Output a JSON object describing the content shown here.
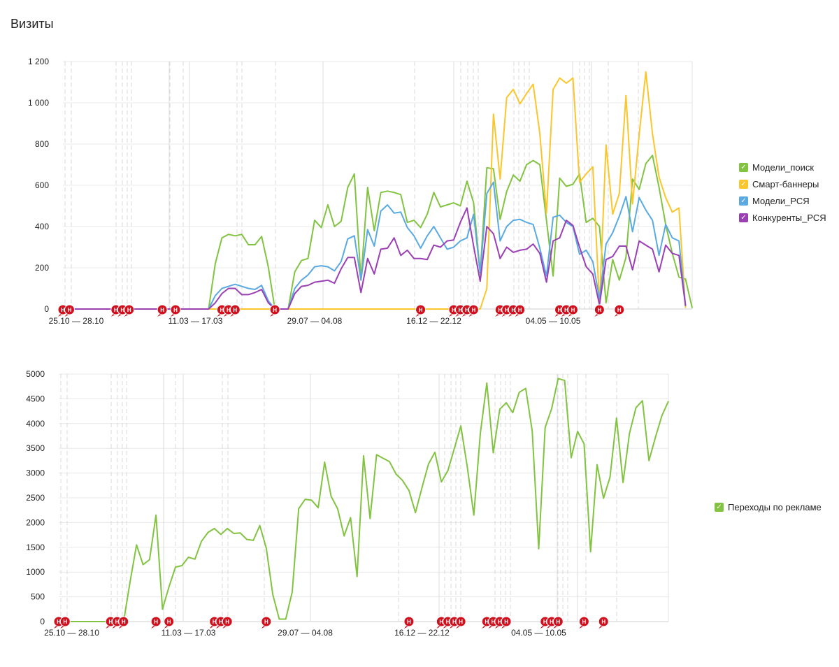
{
  "page_title": "Визиты",
  "annotation_marker_label": "Н",
  "legend_check": "✓",
  "chart_data": [
    {
      "type": "line",
      "ylim": [
        0,
        1200
      ],
      "yticks": [
        0,
        200,
        400,
        600,
        800,
        1000,
        1200
      ],
      "ytick_labels": [
        "0",
        "200",
        "400",
        "600",
        "800",
        "1 000",
        "1 200"
      ],
      "x_labels": [
        {
          "i": 2,
          "label": "25.10 — 28.10"
        },
        {
          "i": 20,
          "label": "11.03 — 17.03"
        },
        {
          "i": 38,
          "label": "29.07 — 04.08"
        },
        {
          "i": 56,
          "label": "16.12 — 22.12"
        },
        {
          "i": 74,
          "label": "04.05 — 10.05"
        }
      ],
      "grid": true,
      "legend_placement": "right",
      "series": [
        {
          "name": "Модели_поиск",
          "color": "#82c341",
          "values": [
            0,
            0,
            0,
            0,
            0,
            0,
            0,
            0,
            0,
            0,
            0,
            0,
            0,
            0,
            0,
            0,
            0,
            0,
            0,
            0,
            0,
            0,
            0,
            220,
            345,
            362,
            355,
            362,
            312,
            312,
            352,
            205,
            0,
            0,
            0,
            180,
            235,
            245,
            430,
            395,
            505,
            400,
            425,
            590,
            655,
            140,
            590,
            380,
            565,
            572,
            565,
            555,
            420,
            430,
            395,
            460,
            565,
            495,
            505,
            515,
            500,
            620,
            515,
            175,
            685,
            680,
            435,
            570,
            650,
            620,
            700,
            720,
            700,
            430,
            160,
            635,
            595,
            605,
            655,
            420,
            440,
            400,
            30,
            240,
            140,
            250,
            630,
            580,
            705,
            745,
            590,
            410,
            270,
            155,
            145,
            5
          ]
        },
        {
          "name": "Смарт-баннеры",
          "color": "#fbc52c",
          "values": [
            0,
            0,
            0,
            0,
            0,
            0,
            0,
            0,
            0,
            0,
            0,
            0,
            0,
            0,
            0,
            0,
            0,
            0,
            0,
            0,
            0,
            0,
            0,
            0,
            0,
            0,
            0,
            0,
            0,
            0,
            0,
            0,
            0,
            0,
            0,
            0,
            0,
            0,
            0,
            0,
            0,
            0,
            0,
            0,
            0,
            0,
            0,
            0,
            0,
            0,
            0,
            0,
            0,
            0,
            0,
            0,
            0,
            0,
            0,
            0,
            0,
            0,
            0,
            0,
            100,
            945,
            630,
            1025,
            1065,
            995,
            1045,
            1090,
            850,
            465,
            1065,
            1120,
            1095,
            1120,
            615,
            655,
            690,
            20,
            795,
            460,
            560,
            1035,
            510,
            845,
            1150,
            850,
            640,
            540,
            470,
            490,
            5
          ]
        },
        {
          "name": "Модели_РСЯ",
          "color": "#5aaae1",
          "values": [
            0,
            0,
            0,
            0,
            0,
            0,
            0,
            0,
            0,
            0,
            0,
            0,
            0,
            0,
            0,
            0,
            0,
            0,
            0,
            0,
            0,
            0,
            0,
            65,
            100,
            110,
            120,
            110,
            100,
            95,
            115,
            40,
            0,
            0,
            0,
            100,
            140,
            165,
            205,
            210,
            205,
            185,
            230,
            340,
            355,
            140,
            385,
            305,
            475,
            505,
            465,
            470,
            395,
            355,
            295,
            355,
            400,
            345,
            290,
            300,
            330,
            345,
            460,
            175,
            560,
            615,
            330,
            400,
            430,
            435,
            420,
            410,
            295,
            160,
            445,
            455,
            420,
            400,
            265,
            285,
            230,
            50,
            315,
            370,
            450,
            545,
            375,
            540,
            480,
            430,
            260,
            410,
            345,
            330,
            15
          ]
        },
        {
          "name": "Конкуренты_РСЯ",
          "color": "#9b3fb5",
          "values": [
            0,
            0,
            0,
            0,
            0,
            0,
            0,
            0,
            0,
            0,
            0,
            0,
            0,
            0,
            0,
            0,
            0,
            0,
            0,
            0,
            0,
            0,
            0,
            30,
            75,
            100,
            100,
            70,
            70,
            80,
            95,
            30,
            0,
            0,
            0,
            75,
            110,
            115,
            130,
            135,
            140,
            125,
            195,
            250,
            250,
            80,
            245,
            170,
            290,
            295,
            345,
            260,
            285,
            245,
            245,
            240,
            310,
            300,
            330,
            335,
            420,
            490,
            305,
            135,
            400,
            365,
            245,
            300,
            275,
            285,
            290,
            315,
            270,
            130,
            330,
            345,
            430,
            405,
            300,
            205,
            170,
            20,
            240,
            255,
            305,
            305,
            190,
            330,
            310,
            290,
            180,
            310,
            270,
            260,
            15
          ]
        }
      ],
      "annotation_indices": [
        0,
        1,
        8,
        9,
        10,
        15,
        17,
        24,
        25,
        26,
        32,
        54,
        59,
        60,
        61,
        62,
        66,
        67,
        68,
        69,
        75,
        76,
        77,
        81,
        84
      ]
    },
    {
      "type": "line",
      "ylim": [
        0,
        5000
      ],
      "yticks": [
        0,
        500,
        1000,
        1500,
        2000,
        2500,
        3000,
        3500,
        4000,
        4500,
        5000
      ],
      "ytick_labels": [
        "0",
        "500",
        "1000",
        "1500",
        "2000",
        "2500",
        "3000",
        "3500",
        "4000",
        "4500",
        "5000"
      ],
      "x_labels": [
        {
          "i": 2,
          "label": "25.10 — 28.10"
        },
        {
          "i": 20,
          "label": "11.03 — 17.03"
        },
        {
          "i": 38,
          "label": "29.07 — 04.08"
        },
        {
          "i": 56,
          "label": "16.12 — 22.12"
        },
        {
          "i": 74,
          "label": "04.05 — 10.05"
        }
      ],
      "grid": true,
      "legend_placement": "right",
      "series": [
        {
          "name": "Переходы по рекламе",
          "color": "#82c341",
          "values": [
            0,
            0,
            0,
            0,
            0,
            0,
            0,
            0,
            0,
            0,
            0,
            800,
            1550,
            1150,
            1250,
            2150,
            250,
            700,
            1100,
            1130,
            1300,
            1260,
            1620,
            1800,
            1880,
            1760,
            1880,
            1780,
            1790,
            1660,
            1640,
            1940,
            1480,
            550,
            50,
            50,
            600,
            2280,
            2470,
            2450,
            2300,
            3220,
            2530,
            2280,
            1730,
            2100,
            910,
            3350,
            2080,
            3370,
            3300,
            3230,
            2980,
            2850,
            2650,
            2200,
            2700,
            3180,
            3420,
            2820,
            3050,
            3500,
            3950,
            3120,
            2150,
            3800,
            4820,
            3410,
            4290,
            4420,
            4220,
            4630,
            4710,
            3850,
            1470,
            3920,
            4300,
            4910,
            4870,
            3310,
            3840,
            3590,
            1410,
            3170,
            2490,
            2920,
            4110,
            2810,
            3800,
            4320,
            4460,
            3250,
            3720,
            4160,
            4450
          ]
        }
      ],
      "annotation_indices": [
        0,
        1,
        8,
        9,
        10,
        15,
        17,
        24,
        25,
        26,
        32,
        54,
        59,
        60,
        61,
        62,
        66,
        67,
        68,
        69,
        75,
        76,
        77,
        81,
        84
      ]
    }
  ]
}
